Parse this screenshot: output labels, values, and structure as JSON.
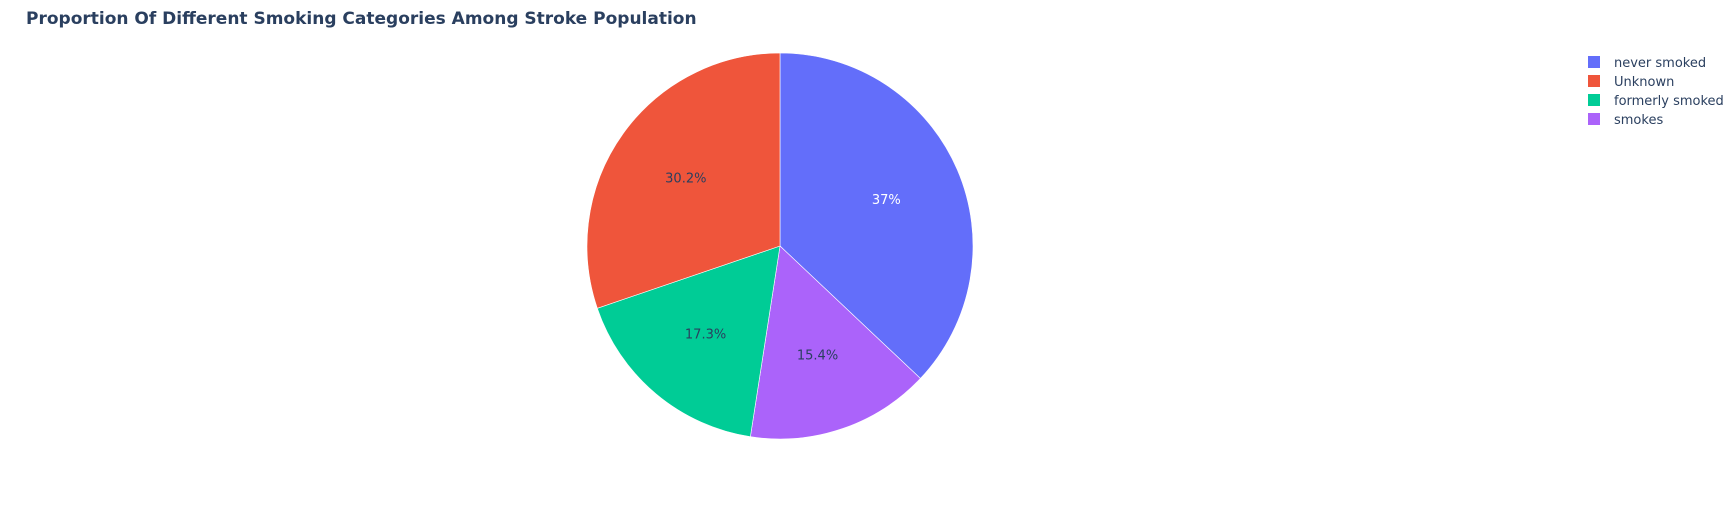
{
  "chart_data": {
    "type": "pie",
    "title": "Proportion Of Different Smoking Categories Among Stroke Population",
    "slices": [
      {
        "name": "never smoked",
        "value": 37.0,
        "label": "37%",
        "color": "#636efa",
        "label_color": "#ffffff"
      },
      {
        "name": "smokes",
        "value": 15.4,
        "label": "15.4%",
        "color": "#ab63fa",
        "label_color": "#2a3f5f"
      },
      {
        "name": "formerly smoked",
        "value": 17.3,
        "label": "17.3%",
        "color": "#00cc96",
        "label_color": "#2a3f5f"
      },
      {
        "name": "Unknown",
        "value": 30.2,
        "label": "30.2%",
        "color": "#ef553b",
        "label_color": "#2a3f5f"
      }
    ],
    "direction": "clockwise",
    "legend": {
      "position": "top-right",
      "items": [
        {
          "name": "never smoked",
          "color": "#636efa"
        },
        {
          "name": "Unknown",
          "color": "#ef553b"
        },
        {
          "name": "formerly smoked",
          "color": "#00cc96"
        },
        {
          "name": "smokes",
          "color": "#ab63fa"
        }
      ]
    }
  }
}
